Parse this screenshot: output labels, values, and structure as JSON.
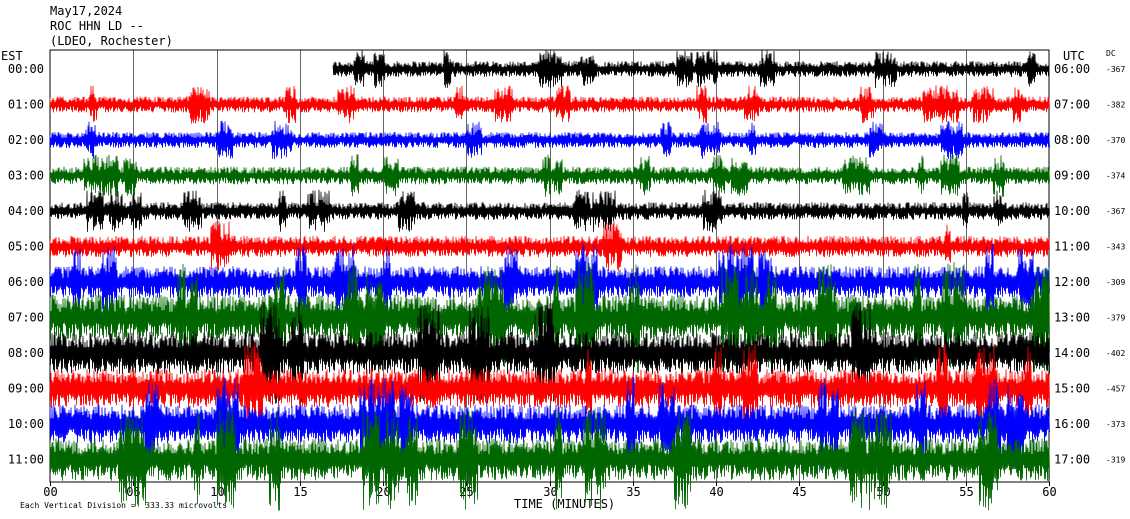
{
  "header": {
    "date": "May17,2024",
    "station": "ROC HHN LD --",
    "network": "(LDEO, Rochester)"
  },
  "left_label": "EST",
  "right_label": "UTC",
  "dc_label": "DC",
  "footer_left": "Each Vertical Division =  333.33 microvolts",
  "chart_data": {
    "type": "line",
    "title": "",
    "xlabel": "TIME (MINUTES)",
    "ylabel": "",
    "x_ticks": [
      "00",
      "05",
      "10",
      "15",
      "20",
      "25",
      "30",
      "35",
      "40",
      "45",
      "50",
      "55",
      "60"
    ],
    "xlim": [
      0,
      60
    ],
    "grid": true,
    "rows": [
      {
        "est": "00:00",
        "utc": "06:00",
        "dc": "-367",
        "color": "#000000",
        "amp": 0.45,
        "start": 17
      },
      {
        "est": "01:00",
        "utc": "07:00",
        "dc": "-382",
        "color": "#ff0000",
        "amp": 0.45,
        "start": 0
      },
      {
        "est": "02:00",
        "utc": "08:00",
        "dc": "-370",
        "color": "#0000ff",
        "amp": 0.45,
        "start": 0
      },
      {
        "est": "03:00",
        "utc": "09:00",
        "dc": "-374",
        "color": "#006600",
        "amp": 0.5,
        "start": 0
      },
      {
        "est": "04:00",
        "utc": "10:00",
        "dc": "-367",
        "color": "#000000",
        "amp": 0.5,
        "start": 0
      },
      {
        "est": "05:00",
        "utc": "11:00",
        "dc": "-343",
        "color": "#ff0000",
        "amp": 0.6,
        "start": 0
      },
      {
        "est": "06:00",
        "utc": "12:00",
        "dc": "-309",
        "color": "#0000ff",
        "amp": 0.9,
        "start": 0
      },
      {
        "est": "07:00",
        "utc": "13:00",
        "dc": "-379",
        "color": "#006600",
        "amp": 1.3,
        "start": 0
      },
      {
        "est": "08:00",
        "utc": "14:00",
        "dc": "-402",
        "color": "#000000",
        "amp": 1.2,
        "start": 0
      },
      {
        "est": "09:00",
        "utc": "15:00",
        "dc": "-457",
        "color": "#ff0000",
        "amp": 1.1,
        "start": 0
      },
      {
        "est": "10:00",
        "utc": "16:00",
        "dc": "-373",
        "color": "#0000ff",
        "amp": 1.1,
        "start": 0
      },
      {
        "est": "11:00",
        "utc": "17:00",
        "dc": "-319",
        "color": "#006600",
        "amp": 1.2,
        "start": 0
      }
    ]
  }
}
